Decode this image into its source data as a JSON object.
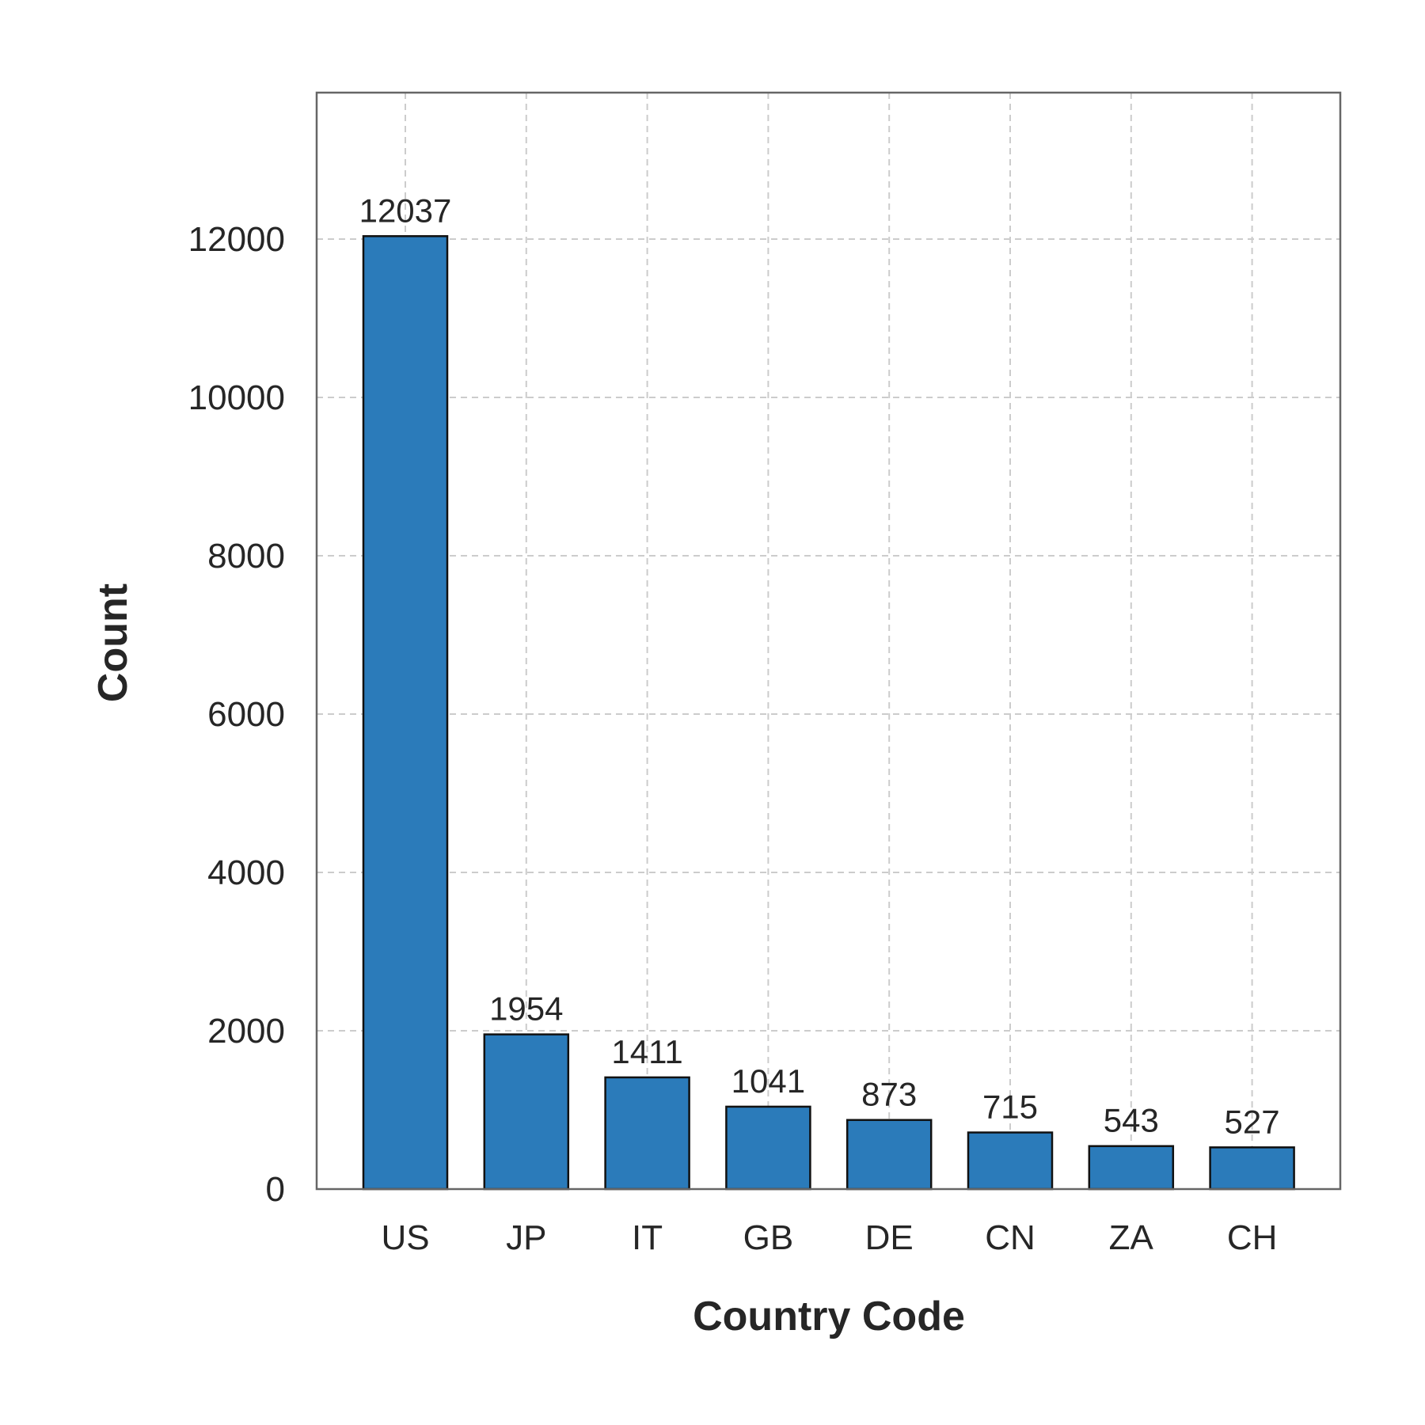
{
  "chart_data": {
    "type": "bar",
    "title": "",
    "xlabel": "Country Code",
    "ylabel": "Count",
    "categories": [
      "US",
      "JP",
      "IT",
      "GB",
      "DE",
      "CN",
      "ZA",
      "CH"
    ],
    "values": [
      12037,
      1954,
      1411,
      1041,
      873,
      715,
      543,
      527
    ],
    "data_labels": [
      "12037",
      "1954",
      "1411",
      "1041",
      "873",
      "715",
      "543",
      "527"
    ],
    "ylim": [
      0,
      13850
    ],
    "yticks": [
      0,
      2000,
      4000,
      6000,
      8000,
      10000,
      12000
    ],
    "ytick_labels": [
      "0",
      "2000",
      "4000",
      "6000",
      "8000",
      "10000",
      "12000"
    ],
    "grid": true,
    "legend": "none",
    "colors": {
      "bar_fill": "#2b7bba",
      "bar_edge": "#111111",
      "grid": "#cccccc",
      "frame": "#666666",
      "text": "#262626"
    }
  }
}
